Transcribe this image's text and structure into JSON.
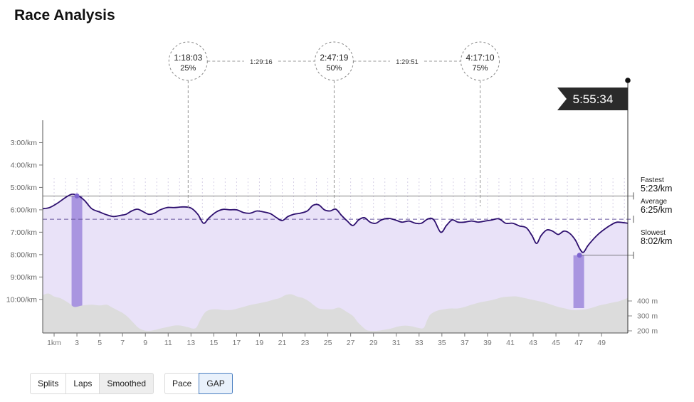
{
  "page": {
    "title": "Race Analysis"
  },
  "chart_data": {
    "type": "line",
    "ylim_pace_min_per_km": [
      2.0,
      11.5
    ],
    "y_ticks": [
      {
        "label": "3:00/km",
        "value": 3
      },
      {
        "label": "4:00/km",
        "value": 4
      },
      {
        "label": "5:00/km",
        "value": 5
      },
      {
        "label": "6:00/km",
        "value": 6
      },
      {
        "label": "7:00/km",
        "value": 7
      },
      {
        "label": "8:00/km",
        "value": 8
      },
      {
        "label": "9:00/km",
        "value": 9
      },
      {
        "label": "10:00/km",
        "value": 10
      }
    ],
    "x_range_km": [
      0,
      51.3
    ],
    "x_ticks": [
      {
        "label": "1km",
        "value": 1
      },
      {
        "label": "3",
        "value": 3
      },
      {
        "label": "5",
        "value": 5
      },
      {
        "label": "7",
        "value": 7
      },
      {
        "label": "9",
        "value": 9
      },
      {
        "label": "11",
        "value": 11
      },
      {
        "label": "13",
        "value": 13
      },
      {
        "label": "15",
        "value": 15
      },
      {
        "label": "17",
        "value": 17
      },
      {
        "label": "19",
        "value": 19
      },
      {
        "label": "21",
        "value": 21
      },
      {
        "label": "23",
        "value": 23
      },
      {
        "label": "25",
        "value": 25
      },
      {
        "label": "27",
        "value": 27
      },
      {
        "label": "29",
        "value": 29
      },
      {
        "label": "31",
        "value": 31
      },
      {
        "label": "33",
        "value": 33
      },
      {
        "label": "35",
        "value": 35
      },
      {
        "label": "37",
        "value": 37
      },
      {
        "label": "39",
        "value": 39
      },
      {
        "label": "41",
        "value": 41
      },
      {
        "label": "43",
        "value": 43
      },
      {
        "label": "45",
        "value": 45
      },
      {
        "label": "47",
        "value": 47
      },
      {
        "label": "49",
        "value": 49
      }
    ],
    "elevation_ticks": [
      {
        "label": "400 m",
        "value": 400
      },
      {
        "label": "300 m",
        "value": 300
      },
      {
        "label": "200 m",
        "value": 200
      }
    ],
    "pace_series": {
      "name": "Pace",
      "color": "#2d0f6e",
      "fill": "#e9e2f8",
      "points": [
        [
          0,
          5.95
        ],
        [
          0.6,
          5.9
        ],
        [
          1.3,
          5.7
        ],
        [
          2,
          5.45
        ],
        [
          2.6,
          5.3
        ],
        [
          3.2,
          5.4
        ],
        [
          3.7,
          5.6
        ],
        [
          4.3,
          5.95
        ],
        [
          5,
          6.1
        ],
        [
          5.6,
          6.22
        ],
        [
          6.2,
          6.3
        ],
        [
          6.8,
          6.25
        ],
        [
          7.3,
          6.2
        ],
        [
          7.8,
          6.05
        ],
        [
          8.3,
          5.97
        ],
        [
          8.8,
          6.08
        ],
        [
          9.3,
          6.2
        ],
        [
          9.8,
          6.15
        ],
        [
          10.3,
          6.0
        ],
        [
          10.9,
          5.9
        ],
        [
          11.6,
          5.9
        ],
        [
          12.3,
          5.87
        ],
        [
          13,
          5.92
        ],
        [
          13.6,
          6.2
        ],
        [
          14.1,
          6.6
        ],
        [
          14.6,
          6.35
        ],
        [
          15.2,
          6.1
        ],
        [
          15.8,
          5.98
        ],
        [
          16.4,
          6.0
        ],
        [
          17,
          6.0
        ],
        [
          17.6,
          6.12
        ],
        [
          18.2,
          6.15
        ],
        [
          18.8,
          6.05
        ],
        [
          19.4,
          6.1
        ],
        [
          20,
          6.18
        ],
        [
          20.5,
          6.35
        ],
        [
          21,
          6.48
        ],
        [
          21.5,
          6.3
        ],
        [
          22,
          6.2
        ],
        [
          22.6,
          6.15
        ],
        [
          23.2,
          6.05
        ],
        [
          23.7,
          5.8
        ],
        [
          24.2,
          5.78
        ],
        [
          24.7,
          6.0
        ],
        [
          25.2,
          6.05
        ],
        [
          25.7,
          5.97
        ],
        [
          26.2,
          6.25
        ],
        [
          26.7,
          6.5
        ],
        [
          27.2,
          6.7
        ],
        [
          27.7,
          6.45
        ],
        [
          28.2,
          6.35
        ],
        [
          28.7,
          6.55
        ],
        [
          29.2,
          6.6
        ],
        [
          29.7,
          6.45
        ],
        [
          30.3,
          6.38
        ],
        [
          30.9,
          6.45
        ],
        [
          31.5,
          6.55
        ],
        [
          32.1,
          6.5
        ],
        [
          32.7,
          6.6
        ],
        [
          33.2,
          6.6
        ],
        [
          33.8,
          6.4
        ],
        [
          34.3,
          6.45
        ],
        [
          34.9,
          7.0
        ],
        [
          35.4,
          6.7
        ],
        [
          35.9,
          6.45
        ],
        [
          36.4,
          6.55
        ],
        [
          37,
          6.55
        ],
        [
          37.6,
          6.5
        ],
        [
          38.2,
          6.55
        ],
        [
          38.8,
          6.5
        ],
        [
          39.4,
          6.45
        ],
        [
          40,
          6.4
        ],
        [
          40.6,
          6.6
        ],
        [
          41.2,
          6.6
        ],
        [
          41.8,
          6.72
        ],
        [
          42.4,
          6.8
        ],
        [
          42.9,
          7.15
        ],
        [
          43.3,
          7.5
        ],
        [
          43.7,
          7.15
        ],
        [
          44.2,
          6.9
        ],
        [
          44.7,
          6.95
        ],
        [
          45.2,
          7.1
        ],
        [
          45.7,
          6.95
        ],
        [
          46.2,
          7.05
        ],
        [
          46.7,
          7.35
        ],
        [
          47.1,
          7.75
        ],
        [
          47.4,
          7.9
        ],
        [
          47.8,
          7.6
        ],
        [
          48.3,
          7.3
        ],
        [
          48.8,
          7.05
        ],
        [
          49.3,
          6.85
        ],
        [
          49.9,
          6.65
        ],
        [
          50.4,
          6.55
        ],
        [
          51.3,
          6.6
        ]
      ]
    },
    "elevation_series": {
      "name": "Elevation",
      "color": "#dcdcdc",
      "points": [
        [
          0,
          440
        ],
        [
          0.5,
          450
        ],
        [
          1,
          430
        ],
        [
          1.5,
          420
        ],
        [
          2,
          400
        ],
        [
          2.4,
          380
        ],
        [
          2.8,
          360
        ],
        [
          3.5,
          370
        ],
        [
          4.3,
          375
        ],
        [
          5,
          370
        ],
        [
          5.6,
          375
        ],
        [
          6,
          360
        ],
        [
          6.5,
          340
        ],
        [
          7,
          320
        ],
        [
          7.5,
          290
        ],
        [
          8,
          250
        ],
        [
          8.4,
          220
        ],
        [
          8.8,
          205
        ],
        [
          9.3,
          200
        ],
        [
          9.8,
          205
        ],
        [
          10.3,
          215
        ],
        [
          10.9,
          225
        ],
        [
          11.5,
          235
        ],
        [
          12.1,
          235
        ],
        [
          12.7,
          225
        ],
        [
          13.2,
          215
        ],
        [
          13.5,
          225
        ],
        [
          13.8,
          270
        ],
        [
          14.2,
          320
        ],
        [
          14.6,
          340
        ],
        [
          15.2,
          345
        ],
        [
          15.8,
          340
        ],
        [
          16.5,
          340
        ],
        [
          17.1,
          350
        ],
        [
          17.6,
          360
        ],
        [
          18.3,
          375
        ],
        [
          19,
          385
        ],
        [
          19.6,
          395
        ],
        [
          20.3,
          410
        ],
        [
          20.8,
          420
        ],
        [
          21.3,
          440
        ],
        [
          21.8,
          445
        ],
        [
          22.3,
          430
        ],
        [
          22.8,
          420
        ],
        [
          23.3,
          400
        ],
        [
          23.8,
          370
        ],
        [
          24.2,
          350
        ],
        [
          24.8,
          345
        ],
        [
          25.4,
          345
        ],
        [
          26,
          355
        ],
        [
          26.6,
          330
        ],
        [
          27.2,
          300
        ],
        [
          27.6,
          260
        ],
        [
          28,
          230
        ],
        [
          28.4,
          205
        ],
        [
          28.8,
          200
        ],
        [
          29.3,
          200
        ],
        [
          29.8,
          205
        ],
        [
          30.5,
          215
        ],
        [
          31.2,
          230
        ],
        [
          31.8,
          235
        ],
        [
          32.4,
          230
        ],
        [
          32.9,
          220
        ],
        [
          33.4,
          220
        ],
        [
          33.7,
          270
        ],
        [
          34,
          310
        ],
        [
          34.6,
          335
        ],
        [
          35.2,
          345
        ],
        [
          35.8,
          350
        ],
        [
          36.4,
          350
        ],
        [
          37,
          360
        ],
        [
          37.6,
          375
        ],
        [
          38.3,
          390
        ],
        [
          39,
          400
        ],
        [
          39.6,
          410
        ],
        [
          40.3,
          425
        ],
        [
          41,
          430
        ],
        [
          41.6,
          430
        ],
        [
          42.2,
          420
        ],
        [
          42.8,
          410
        ],
        [
          43.4,
          400
        ],
        [
          44,
          390
        ],
        [
          44.6,
          375
        ],
        [
          45.2,
          360
        ],
        [
          45.8,
          350
        ],
        [
          46.4,
          340
        ],
        [
          47,
          340
        ],
        [
          47.6,
          345
        ],
        [
          48.2,
          355
        ],
        [
          48.8,
          370
        ],
        [
          49.4,
          380
        ],
        [
          50,
          390
        ],
        [
          50.6,
          400
        ],
        [
          51.3,
          420
        ]
      ]
    },
    "highlight_bars": [
      {
        "name": "Fastest km",
        "x_start": 2.5,
        "x_end": 3.5,
        "pace": 5.38
      },
      {
        "name": "Slowest km",
        "x_start": 46.5,
        "x_end": 47.5,
        "pace": 8.03
      }
    ],
    "reference_lines": [
      {
        "name": "Fastest",
        "value_label": "5:23/km",
        "pace": 5.38,
        "style": "solid"
      },
      {
        "name": "Average",
        "value_label": "6:25/km",
        "pace": 6.42,
        "style": "dashed"
      },
      {
        "name": "Slowest",
        "value_label": "8:02/km",
        "pace": 8.03,
        "style": "solid"
      }
    ],
    "splits": [
      {
        "time": "1:18:03",
        "percent": "25%",
        "km": 12.75
      },
      {
        "time": "2:47:19",
        "percent": "50%",
        "km": 25.55
      },
      {
        "time": "4:17:10",
        "percent": "75%",
        "km": 38.35
      }
    ],
    "split_intervals": [
      "1:29:16",
      "1:29:51"
    ],
    "finish_time": "5:55:34",
    "finish_km": 51.3,
    "grid": "vertical dashed at each km",
    "colors": {
      "line": "#2d0f6e",
      "area": "#e9e2f8",
      "highlight": "#a995e0",
      "elevation": "#dcdcdc",
      "finish_flag": "#2b2b2b"
    }
  },
  "controls": {
    "view_buttons": [
      {
        "label": "Splits",
        "active": false
      },
      {
        "label": "Laps",
        "active": false
      },
      {
        "label": "Smoothed",
        "active": true
      }
    ],
    "metric_buttons": [
      {
        "label": "Pace",
        "active": false
      },
      {
        "label": "GAP",
        "active": true
      }
    ]
  }
}
